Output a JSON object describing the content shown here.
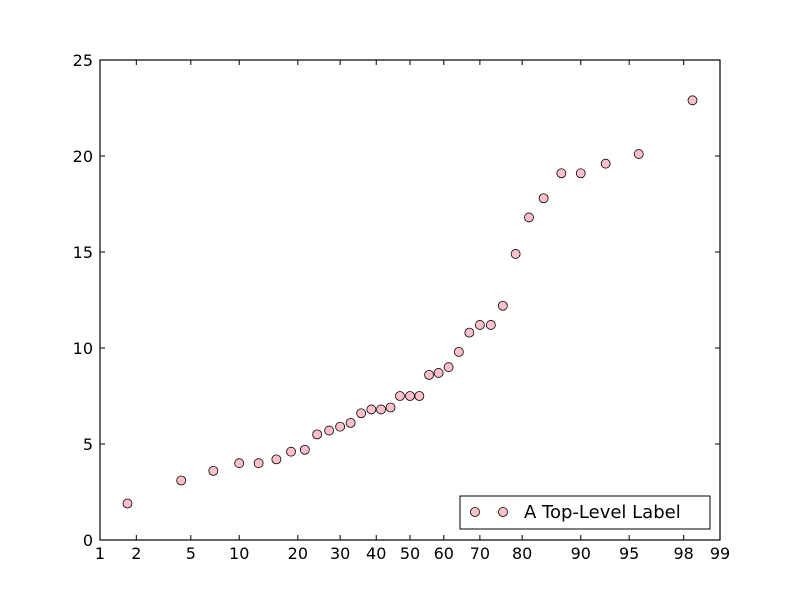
{
  "chart_data": {
    "type": "scatter",
    "title": "",
    "xlabel": "",
    "ylabel": "",
    "x_scale": "probability",
    "xlim": [
      1,
      99
    ],
    "ylim": [
      0,
      25
    ],
    "x_ticks": [
      1,
      2,
      5,
      10,
      20,
      30,
      40,
      50,
      60,
      70,
      80,
      90,
      95,
      98,
      99
    ],
    "x_tick_labels": [
      "1",
      "2",
      "5",
      "10",
      "20",
      "30",
      "40",
      "50",
      "60",
      "70",
      "80",
      "90",
      "95",
      "98",
      "99"
    ],
    "y_ticks": [
      0,
      5,
      10,
      15,
      20,
      25
    ],
    "y_tick_labels": [
      "0",
      "5",
      "10",
      "15",
      "20",
      "25"
    ],
    "grid": false,
    "legend_position": "lower-right",
    "series": [
      {
        "name": "A Top-Level Label",
        "marker": "circle",
        "color": "#ffc0cb",
        "edge_color": "#000000",
        "x": [
          1.7,
          4.3,
          7.0,
          10.0,
          12.8,
          15.8,
          18.6,
          21.5,
          24.3,
          27.2,
          30.0,
          32.8,
          35.7,
          38.6,
          41.4,
          44.2,
          47.0,
          50.0,
          52.8,
          55.7,
          58.5,
          61.4,
          64.3,
          67.2,
          70.0,
          72.8,
          75.7,
          78.6,
          81.4,
          84.2,
          87.2,
          90.0,
          92.9,
          95.7,
          98.3
        ],
        "y": [
          1.9,
          3.1,
          3.6,
          4.0,
          4.0,
          4.2,
          4.6,
          4.7,
          5.5,
          5.7,
          5.9,
          6.1,
          6.6,
          6.8,
          6.8,
          6.9,
          7.5,
          7.5,
          7.5,
          8.6,
          8.7,
          9.0,
          9.8,
          10.8,
          11.2,
          11.2,
          12.2,
          14.9,
          16.8,
          17.8,
          19.1,
          19.1,
          19.6,
          20.1,
          22.9
        ]
      }
    ]
  }
}
